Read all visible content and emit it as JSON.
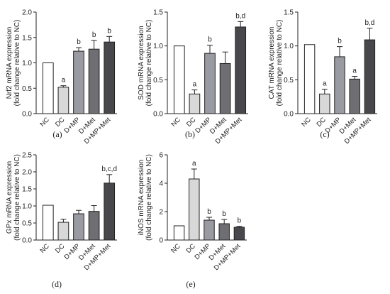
{
  "chart_data": [
    {
      "type": "bar",
      "panel_label": "(a)",
      "ylabel_lines": [
        "Nrf2 mRNA expression",
        "(fold change relative to NC)"
      ],
      "ylim": [
        0,
        2.0
      ],
      "ticks": [
        "0.0",
        "0.5",
        "1.0",
        "1.5",
        "2.0"
      ],
      "categories": [
        "NC",
        "DC",
        "D+MP",
        "D+Met",
        "D+MP+Met"
      ],
      "values": [
        1.0,
        0.52,
        1.23,
        1.27,
        1.41
      ],
      "errors": [
        0,
        0.03,
        0.07,
        0.17,
        0.11
      ],
      "sig_labels": [
        "",
        "a",
        "b",
        "b",
        "b"
      ]
    },
    {
      "type": "bar",
      "panel_label": "(b)",
      "ylabel_lines": [
        "SOD mRNA expression",
        "(fold change relative to NC)"
      ],
      "ylim": [
        0,
        1.5
      ],
      "ticks": [
        "0.0",
        "0.5",
        "1.0",
        "1.5"
      ],
      "categories": [
        "NC",
        "DC",
        "D+MP",
        "D+Met",
        "D+MP+Met"
      ],
      "values": [
        1.0,
        0.29,
        0.89,
        0.74,
        1.28
      ],
      "errors": [
        0,
        0.06,
        0.12,
        0.17,
        0.08
      ],
      "sig_labels": [
        "",
        "a",
        "b",
        "",
        "b,d"
      ]
    },
    {
      "type": "bar",
      "panel_label": "(c)",
      "ylabel_lines": [
        "CAT mRNA expression",
        "(fold change relative to NC)"
      ],
      "ylim": [
        0,
        1.5
      ],
      "ticks": [
        "0.0",
        "0.5",
        "1.0",
        "1.5"
      ],
      "categories": [
        "NC",
        "DC",
        "D+MP",
        "D+Met",
        "D+MP+Met"
      ],
      "values": [
        1.02,
        0.29,
        0.84,
        0.51,
        1.09
      ],
      "errors": [
        0,
        0.07,
        0.15,
        0.04,
        0.17
      ],
      "sig_labels": [
        "",
        "a",
        "b",
        "a",
        "b,d"
      ]
    },
    {
      "type": "bar",
      "panel_label": "(d)",
      "ylabel_lines": [
        "GPx mRNA expression",
        "(fold change relative to NC)"
      ],
      "ylim": [
        0,
        2.5
      ],
      "ticks": [
        "0.0",
        "0.5",
        "1.0",
        "1.5",
        "2.0",
        "2.5"
      ],
      "categories": [
        "NC",
        "DC",
        "D+MP",
        "D+Met",
        "D+MP+Met"
      ],
      "values": [
        1.02,
        0.52,
        0.77,
        0.84,
        1.67
      ],
      "errors": [
        0,
        0.09,
        0.1,
        0.17,
        0.25
      ],
      "sig_labels": [
        "",
        "",
        "",
        "",
        "b,c,d"
      ]
    },
    {
      "type": "bar",
      "panel_label": "(e)",
      "ylabel_lines": [
        "iNOS mRNA expression",
        "(fold change relative to NC)"
      ],
      "ylim": [
        0,
        6
      ],
      "ticks": [
        "0",
        "2",
        "4",
        "6"
      ],
      "categories": [
        "NC",
        "DC",
        "D+MP",
        "D+Met",
        "D+MP+Met"
      ],
      "values": [
        1.0,
        4.3,
        1.4,
        1.15,
        0.9
      ],
      "errors": [
        0,
        0.7,
        0.2,
        0.3,
        0.07
      ],
      "sig_labels": [
        "",
        "a",
        "b",
        "b",
        "b"
      ]
    }
  ],
  "style": {
    "bar_fills": [
      "#ffffff",
      "#d8d8d8",
      "#9a9aa2",
      "#6f6f73",
      "#48484c"
    ],
    "stroke": "#222222"
  }
}
